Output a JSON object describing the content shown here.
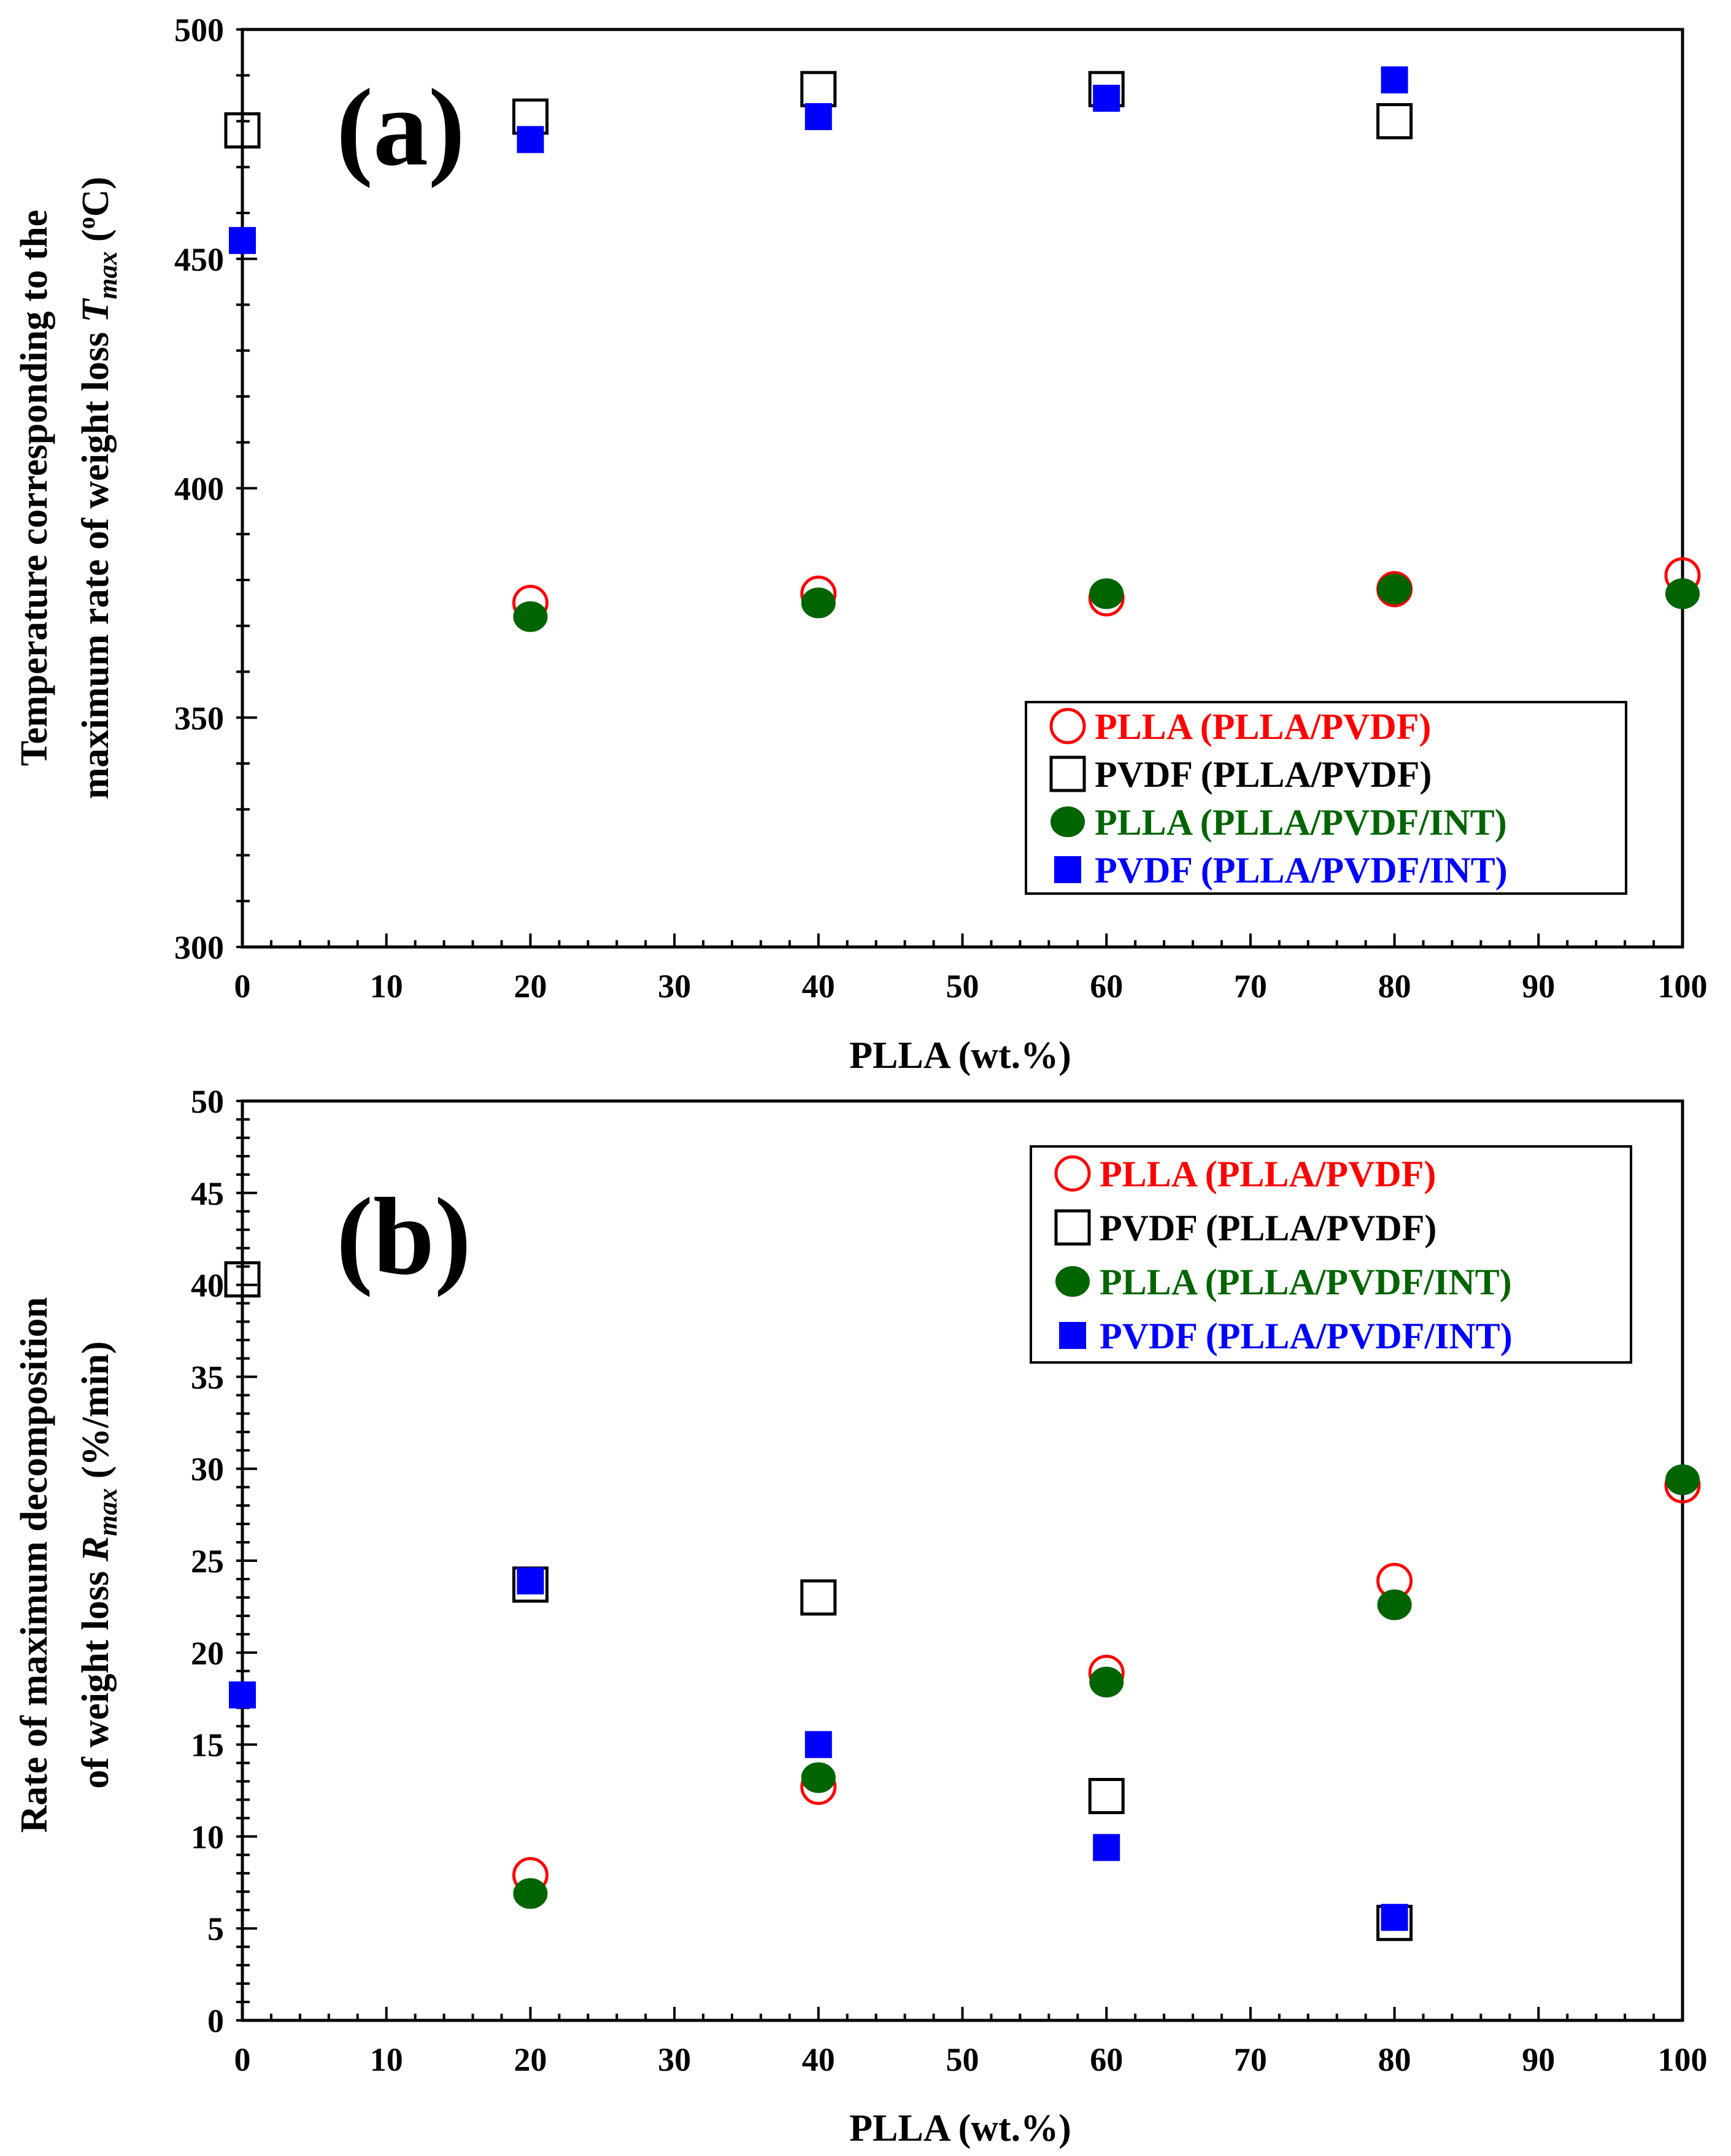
{
  "figure": {
    "panels": [
      {
        "id": "a",
        "panel_label": "(a)",
        "xlabel": "PLLA (wt.%)",
        "ylabel_line1": "Temperature corresponding to the",
        "ylabel_line2_prefix": "maximum rate of weight loss ",
        "ylabel_line2_symbol": "T",
        "ylabel_line2_sub": "max",
        "ylabel_line2_suffix": " (",
        "ylabel_line2_deg": "o",
        "ylabel_line2_unit": "C)"
      },
      {
        "id": "b",
        "panel_label": "(b)",
        "xlabel": "PLLA (wt.%)",
        "ylabel_line1": "Rate of maximum decomposition",
        "ylabel_line2_prefix": "of weight loss ",
        "ylabel_line2_symbol": "R",
        "ylabel_line2_sub": "max",
        "ylabel_line2_suffix": " (%/min)"
      }
    ]
  },
  "colors": {
    "red": "#ff0000",
    "black": "#000000",
    "green": "#006400",
    "blue": "#0000ff"
  },
  "chart_data": [
    {
      "type": "scatter",
      "title": "(a)",
      "xlabel": "PLLA (wt.%)",
      "ylabel": "Temperature corresponding to the maximum rate of weight loss Tmax (oC)",
      "xlim": [
        0,
        100
      ],
      "ylim": [
        300,
        500
      ],
      "xticks": [
        0,
        10,
        20,
        30,
        40,
        50,
        60,
        70,
        80,
        90,
        100
      ],
      "yticks": [
        300,
        350,
        400,
        450,
        500
      ],
      "legend_position": "bottom-right",
      "series": [
        {
          "name": "PLLA (PLLA/PVDF)",
          "marker": "open-circle",
          "color": "#ff0000",
          "x": [
            20,
            40,
            60,
            80,
            100
          ],
          "y": [
            375,
            377,
            376,
            378,
            381
          ]
        },
        {
          "name": "PVDF (PLLA/PVDF)",
          "marker": "open-square",
          "color": "#000000",
          "x": [
            0,
            20,
            40,
            60,
            80
          ],
          "y": [
            478,
            481,
            487,
            487,
            480
          ]
        },
        {
          "name": "PLLA (PLLA/PVDF/INT)",
          "marker": "filled-circle",
          "color": "#006400",
          "x": [
            20,
            40,
            60,
            80,
            100
          ],
          "y": [
            372,
            375,
            377,
            378,
            377
          ]
        },
        {
          "name": "PVDF (PLLA/PVDF/INT)",
          "marker": "filled-square",
          "color": "#0000ff",
          "x": [
            0,
            20,
            40,
            60,
            80
          ],
          "y": [
            454,
            476,
            481,
            485,
            489
          ]
        }
      ]
    },
    {
      "type": "scatter",
      "title": "(b)",
      "xlabel": "PLLA (wt.%)",
      "ylabel": "Rate of maximum decomposition of weight loss Rmax (%/min)",
      "xlim": [
        0,
        100
      ],
      "ylim": [
        0,
        50
      ],
      "xticks": [
        0,
        10,
        20,
        30,
        40,
        50,
        60,
        70,
        80,
        90,
        100
      ],
      "yticks": [
        0,
        5,
        10,
        15,
        20,
        25,
        30,
        35,
        40,
        45,
        50
      ],
      "legend_position": "top-right",
      "series": [
        {
          "name": "PLLA (PLLA/PVDF)",
          "marker": "open-circle",
          "color": "#ff0000",
          "x": [
            20,
            40,
            60,
            80,
            100
          ],
          "y": [
            7.9,
            12.7,
            18.9,
            23.9,
            29.1
          ]
        },
        {
          "name": "PVDF (PLLA/PVDF)",
          "marker": "open-square",
          "color": "#000000",
          "x": [
            0,
            20,
            40,
            60,
            80
          ],
          "y": [
            40.3,
            23.7,
            23.0,
            12.2,
            5.3
          ]
        },
        {
          "name": "PLLA (PLLA/PVDF/INT)",
          "marker": "filled-circle",
          "color": "#006400",
          "x": [
            20,
            40,
            60,
            80,
            100
          ],
          "y": [
            6.9,
            13.2,
            18.4,
            22.6,
            29.4
          ]
        },
        {
          "name": "PVDF (PLLA/PVDF/INT)",
          "marker": "filled-square",
          "color": "#0000ff",
          "x": [
            0,
            20,
            40,
            60,
            80
          ],
          "y": [
            17.7,
            23.9,
            15.0,
            9.4,
            5.6
          ]
        }
      ]
    }
  ]
}
